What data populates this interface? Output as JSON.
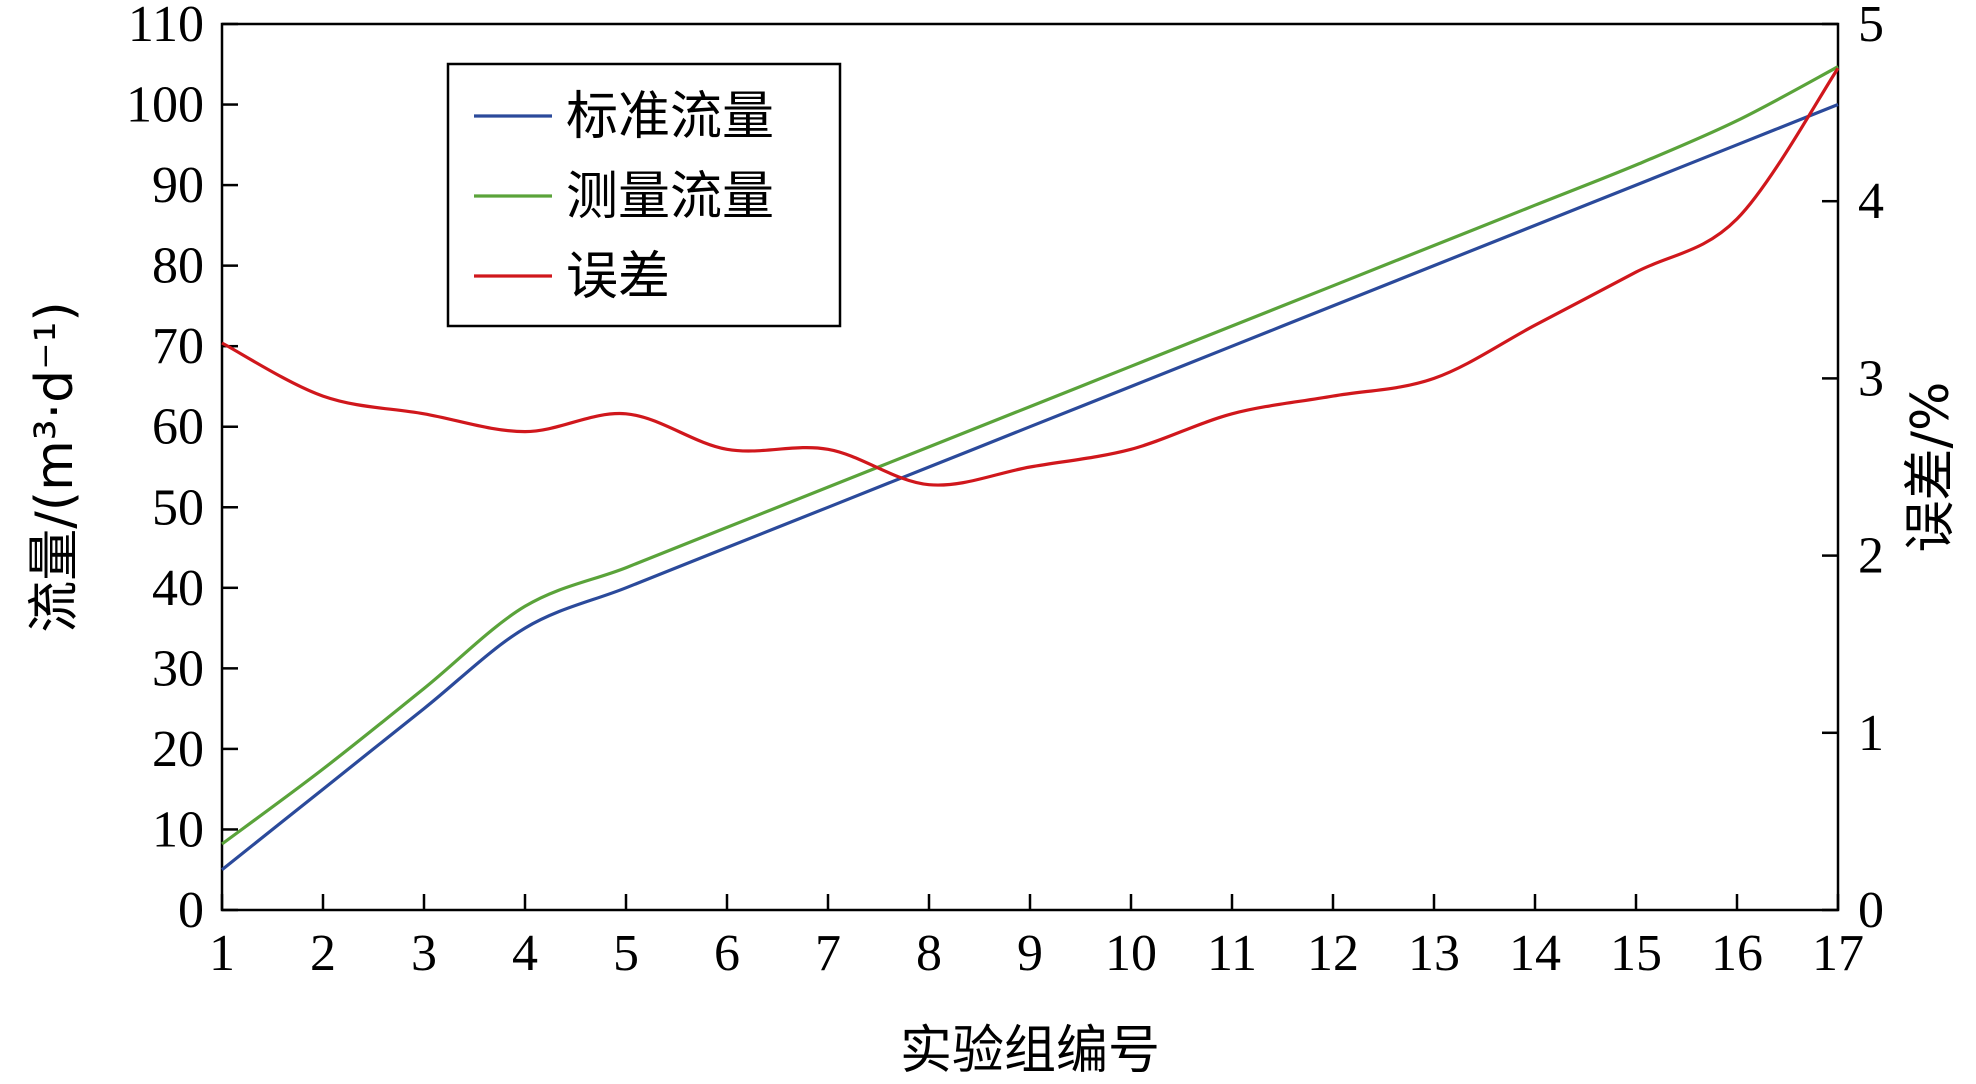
{
  "chart_data": {
    "type": "line",
    "xlabel": "实验组编号",
    "ylabel_left": "流量/(m³·d⁻¹)",
    "ylabel_right": "误差/%",
    "x": [
      1,
      2,
      3,
      4,
      5,
      6,
      7,
      8,
      9,
      10,
      11,
      12,
      13,
      14,
      15,
      16,
      17
    ],
    "xlim": [
      1,
      17
    ],
    "ylim_left": [
      0,
      110
    ],
    "ylim_right": [
      0,
      5
    ],
    "yticks_left": [
      0,
      10,
      20,
      30,
      40,
      50,
      60,
      70,
      80,
      90,
      100,
      110
    ],
    "yticks_right": [
      0,
      1,
      2,
      3,
      4,
      5
    ],
    "xticks": [
      1,
      2,
      3,
      4,
      5,
      6,
      7,
      8,
      9,
      10,
      11,
      12,
      13,
      14,
      15,
      16,
      17
    ],
    "grid": false,
    "legend_position": "top-left",
    "series": [
      {
        "name": "标准流量",
        "axis": "left",
        "color": "#2b4a9b",
        "values": [
          5,
          15,
          25,
          35,
          40,
          45,
          50,
          55,
          60,
          65,
          70,
          75,
          80,
          85,
          90,
          95,
          100
        ]
      },
      {
        "name": "测量流量",
        "axis": "left",
        "color": "#5aa33a",
        "values": [
          8.2,
          17.5,
          27.5,
          37.7,
          42.5,
          47.5,
          52.5,
          57.5,
          62.5,
          67.5,
          72.5,
          77.5,
          82.5,
          87.5,
          92.5,
          98.0,
          104.7
        ]
      },
      {
        "name": "误差",
        "axis": "right",
        "color": "#d0171c",
        "values": [
          3.2,
          2.9,
          2.8,
          2.7,
          2.8,
          2.6,
          2.6,
          2.4,
          2.5,
          2.6,
          2.8,
          2.9,
          3.0,
          3.3,
          3.6,
          3.9,
          4.75
        ]
      }
    ]
  }
}
